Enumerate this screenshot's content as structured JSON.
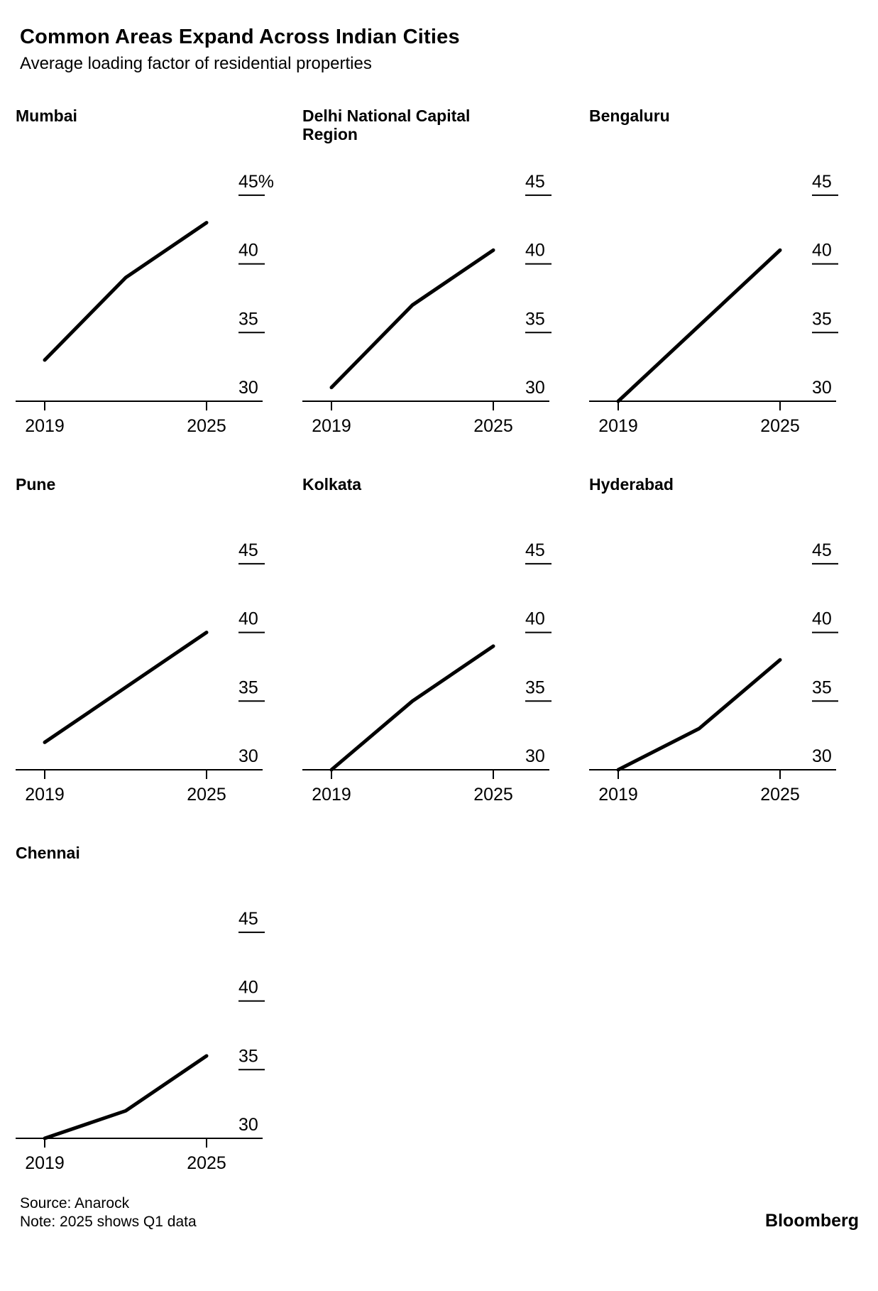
{
  "header": {
    "title": "Common Areas Expand Across Indian Cities",
    "subtitle": "Average loading factor of residential properties"
  },
  "chart_data": [
    {
      "type": "line",
      "title": "Mumbai",
      "x": [
        2019,
        2022,
        2025
      ],
      "values": [
        33,
        39,
        43
      ],
      "ylim": [
        30,
        46
      ],
      "yticks": [
        45,
        40,
        35,
        30
      ],
      "ytick_labels": [
        "45%",
        "40",
        "35",
        "30"
      ],
      "xtick_labels": [
        "2019",
        "2025"
      ],
      "unit": "%",
      "grid": "off",
      "legend": "none"
    },
    {
      "type": "line",
      "title": "Delhi National Capital Region",
      "x": [
        2019,
        2022,
        2025
      ],
      "values": [
        31,
        37,
        41
      ],
      "ylim": [
        30,
        46
      ],
      "yticks": [
        45,
        40,
        35,
        30
      ],
      "ytick_labels": [
        "45",
        "40",
        "35",
        "30"
      ],
      "xtick_labels": [
        "2019",
        "2025"
      ],
      "unit": "%",
      "grid": "off",
      "legend": "none"
    },
    {
      "type": "line",
      "title": "Bengaluru",
      "x": [
        2019,
        2022,
        2025
      ],
      "values": [
        30,
        35.5,
        41
      ],
      "ylim": [
        30,
        46
      ],
      "yticks": [
        45,
        40,
        35,
        30
      ],
      "ytick_labels": [
        "45",
        "40",
        "35",
        "30"
      ],
      "xtick_labels": [
        "2019",
        "2025"
      ],
      "unit": "%",
      "grid": "off",
      "legend": "none"
    },
    {
      "type": "line",
      "title": "Pune",
      "x": [
        2019,
        2022,
        2025
      ],
      "values": [
        32,
        36,
        40
      ],
      "ylim": [
        30,
        46
      ],
      "yticks": [
        45,
        40,
        35,
        30
      ],
      "ytick_labels": [
        "45",
        "40",
        "35",
        "30"
      ],
      "xtick_labels": [
        "2019",
        "2025"
      ],
      "unit": "%",
      "grid": "off",
      "legend": "none"
    },
    {
      "type": "line",
      "title": "Kolkata",
      "x": [
        2019,
        2022,
        2025
      ],
      "values": [
        30,
        35,
        39
      ],
      "ylim": [
        30,
        46
      ],
      "yticks": [
        45,
        40,
        35,
        30
      ],
      "ytick_labels": [
        "45",
        "40",
        "35",
        "30"
      ],
      "xtick_labels": [
        "2019",
        "2025"
      ],
      "unit": "%",
      "grid": "off",
      "legend": "none"
    },
    {
      "type": "line",
      "title": "Hyderabad",
      "x": [
        2019,
        2022,
        2025
      ],
      "values": [
        30,
        33,
        38
      ],
      "ylim": [
        30,
        46
      ],
      "yticks": [
        45,
        40,
        35,
        30
      ],
      "ytick_labels": [
        "45",
        "40",
        "35",
        "30"
      ],
      "xtick_labels": [
        "2019",
        "2025"
      ],
      "unit": "%",
      "grid": "off",
      "legend": "none"
    },
    {
      "type": "line",
      "title": "Chennai",
      "x": [
        2019,
        2022,
        2025
      ],
      "values": [
        30,
        32,
        36
      ],
      "ylim": [
        30,
        46
      ],
      "yticks": [
        45,
        40,
        35,
        30
      ],
      "ytick_labels": [
        "45",
        "40",
        "35",
        "30"
      ],
      "xtick_labels": [
        "2019",
        "2025"
      ],
      "unit": "%",
      "grid": "off",
      "legend": "none"
    }
  ],
  "footer": {
    "source": "Source: Anarock",
    "note": "Note: 2025 shows Q1 data",
    "brand": "Bloomberg"
  },
  "colors": {
    "line": "#000000",
    "axis": "#000000",
    "text": "#000000",
    "background": "#ffffff"
  }
}
